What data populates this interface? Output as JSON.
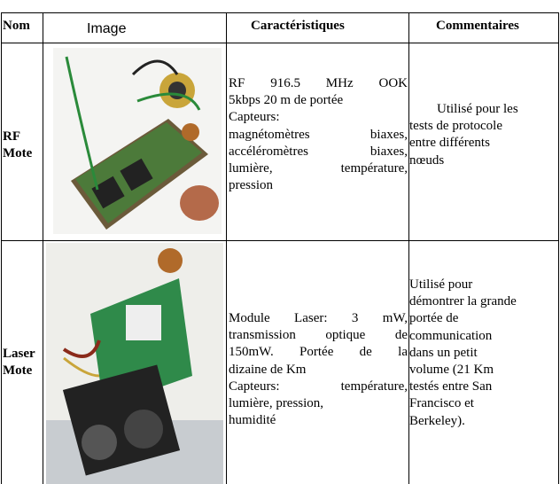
{
  "table": {
    "header": [
      "Nom",
      "Image",
      "Caractéristiques",
      "Commentaires"
    ],
    "rows": [
      {
        "name": "RF Mote",
        "characteristics": [
          "RF 916.5 MHz OOK",
          "5kbps 20 m de portée",
          "Capteurs:",
          "magnétomètres biaxes,",
          "accéléromètres biaxes,",
          "lumière, température,",
          "pression"
        ],
        "comments": [
          "Utilisé pour les",
          "tests de protocole",
          "entre différents",
          "nœuds"
        ]
      },
      {
        "name": "Laser Mote",
        "characteristics": [
          "Module Laser: 3 mW,",
          "transmission optique de",
          "150mW. Portée de la",
          "dizaine de Km",
          "Capteurs: température,",
          "lumière, pression,",
          "humidité"
        ],
        "comments": [
          "Utilisé pour",
          "démontrer la grande",
          "portée de",
          "communication",
          "dans un petit",
          "volume (21 Km",
          "testés entre San",
          "Francisco et",
          "Berkeley)."
        ]
      }
    ]
  }
}
